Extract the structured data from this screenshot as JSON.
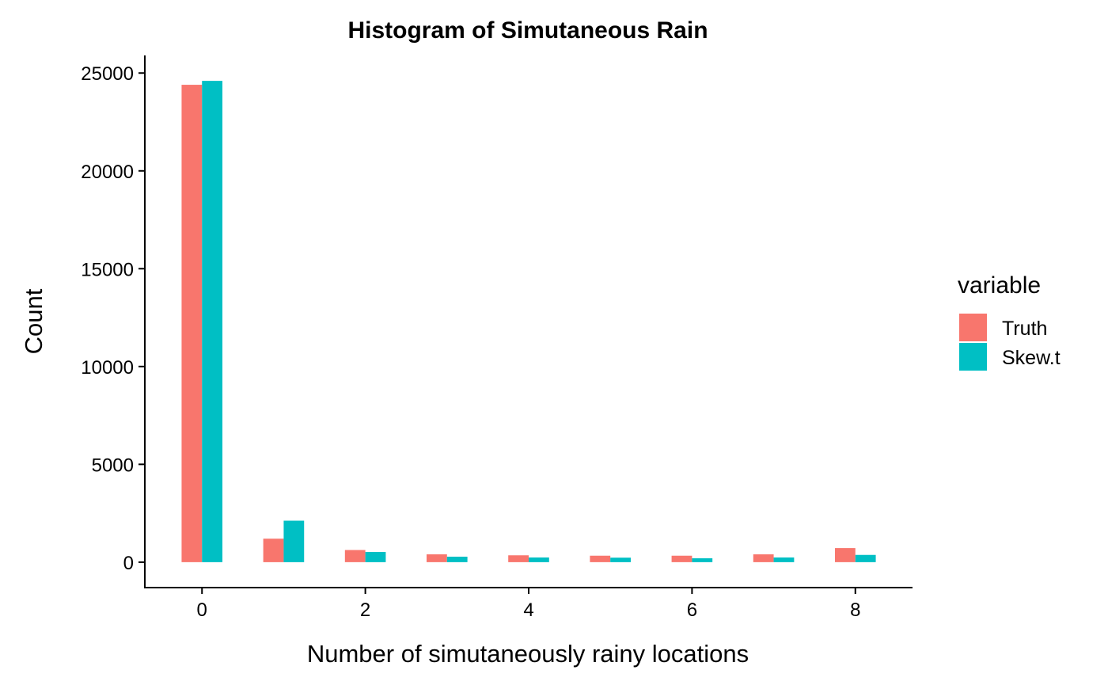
{
  "chart_data": {
    "type": "bar",
    "title": "Histogram of Simutaneous Rain",
    "xlabel": "Number of simutaneously rainy locations",
    "ylabel": "Count",
    "x": [
      0,
      1,
      2,
      3,
      4,
      5,
      6,
      7,
      8
    ],
    "x_ticks": [
      0,
      2,
      4,
      6,
      8
    ],
    "y_ticks": [
      0,
      5000,
      10000,
      15000,
      20000,
      25000
    ],
    "xlim": [
      -0.7,
      8.7
    ],
    "ylim": [
      -1300,
      25900
    ],
    "legend": {
      "title": "variable",
      "position": "right"
    },
    "series": [
      {
        "name": "Truth",
        "color": "#F8766D",
        "values": [
          24400,
          1200,
          620,
          400,
          350,
          330,
          330,
          400,
          720
        ]
      },
      {
        "name": "Skew.t",
        "color": "#00BFC4",
        "values": [
          24600,
          2120,
          520,
          280,
          240,
          230,
          200,
          240,
          370
        ]
      }
    ],
    "grid": false
  }
}
